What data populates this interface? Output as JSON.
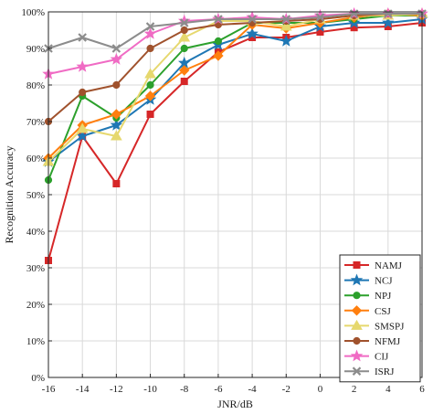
{
  "chart_data": {
    "type": "line",
    "xlabel": "JNR/dB",
    "ylabel": "Recognition Accuracy",
    "x": [
      -16,
      -14,
      -12,
      -10,
      -8,
      -6,
      -4,
      -2,
      0,
      2,
      4,
      6
    ],
    "x_tick_labels": [
      "-16",
      "-14",
      "-12",
      "-10",
      "-8",
      "-6",
      "-4",
      "-2",
      "0",
      "2",
      "4",
      "6"
    ],
    "xlim": [
      -16,
      6
    ],
    "ylim": [
      0,
      100
    ],
    "y_ticks": [
      0,
      10,
      20,
      30,
      40,
      50,
      60,
      70,
      80,
      90,
      100
    ],
    "y_tick_labels": [
      "0%",
      "10%",
      "20%",
      "30%",
      "40%",
      "50%",
      "60%",
      "70%",
      "80%",
      "90%",
      "100%"
    ],
    "grid": true,
    "legend_position": "bottom-right",
    "series": [
      {
        "name": "NAMJ",
        "color": "#d62728",
        "marker": "square",
        "values": [
          32,
          66,
          53,
          72,
          81,
          89,
          93,
          93,
          94.5,
          95.7,
          96,
          97
        ]
      },
      {
        "name": "NCJ",
        "color": "#1f77b4",
        "marker": "star",
        "values": [
          59,
          66,
          69,
          76,
          86,
          91,
          94,
          92,
          96,
          97,
          97,
          98
        ]
      },
      {
        "name": "NPJ",
        "color": "#2ca02c",
        "marker": "circle",
        "values": [
          54,
          77,
          71,
          80,
          90,
          92,
          97,
          97,
          97,
          98,
          99,
          99
        ]
      },
      {
        "name": "CSJ",
        "color": "#ff7f0e",
        "marker": "diamond",
        "values": [
          60,
          69,
          72,
          77,
          84,
          88,
          96.5,
          95.5,
          97,
          98.5,
          99.5,
          99
        ]
      },
      {
        "name": "SMSPJ",
        "color": "#e6d86e",
        "marker": "triangle",
        "values": [
          59,
          68,
          66,
          83,
          93,
          97.5,
          97.5,
          96,
          98,
          99,
          99,
          99.5
        ]
      },
      {
        "name": "NFMJ",
        "color": "#a0522d",
        "marker": "circle",
        "values": [
          70,
          78,
          80,
          90,
          95,
          96.5,
          97,
          97.5,
          98,
          99,
          99.5,
          99.5
        ]
      },
      {
        "name": "CIJ",
        "color": "#f06bc4",
        "marker": "star",
        "values": [
          83,
          85,
          87,
          94,
          97.5,
          98,
          98.5,
          98,
          99,
          99.5,
          99.5,
          99.5
        ]
      },
      {
        "name": "ISRJ",
        "color": "#8c8c8c",
        "marker": "x",
        "values": [
          90,
          93,
          90,
          96,
          97,
          98,
          98,
          98,
          98.5,
          99.5,
          99.5,
          99.5
        ]
      }
    ]
  }
}
